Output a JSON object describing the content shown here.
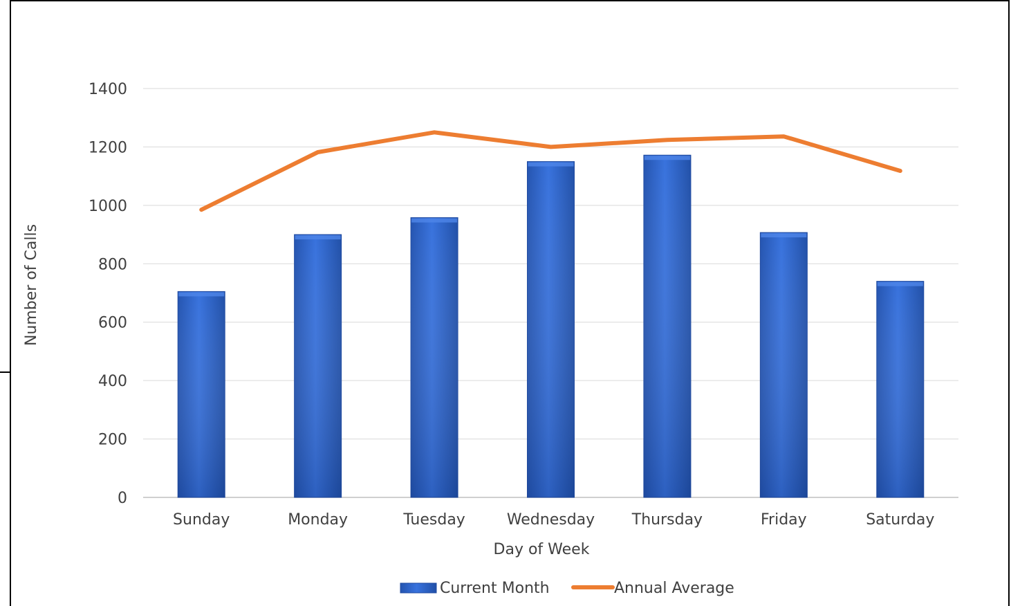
{
  "chart_data": {
    "type": "bar",
    "title": "",
    "xlabel": "Day of Week",
    "ylabel": "Number of Calls",
    "ylim": [
      0,
      1400
    ],
    "yticks": [
      0,
      200,
      400,
      600,
      800,
      1000,
      1200,
      1400
    ],
    "grid": true,
    "legend_position": "bottom",
    "categories": [
      "Sunday",
      "Monday",
      "Tuesday",
      "Wednesday",
      "Thursday",
      "Friday",
      "Saturday"
    ],
    "series": [
      {
        "name": "Current Month",
        "type": "bar",
        "color": "#2f63c9",
        "values": [
          705,
          900,
          958,
          1150,
          1172,
          907,
          740
        ]
      },
      {
        "name": "Annual Average",
        "type": "line",
        "color": "#ed7d31",
        "values": [
          985,
          1182,
          1250,
          1200,
          1224,
          1236,
          1118
        ]
      }
    ]
  }
}
